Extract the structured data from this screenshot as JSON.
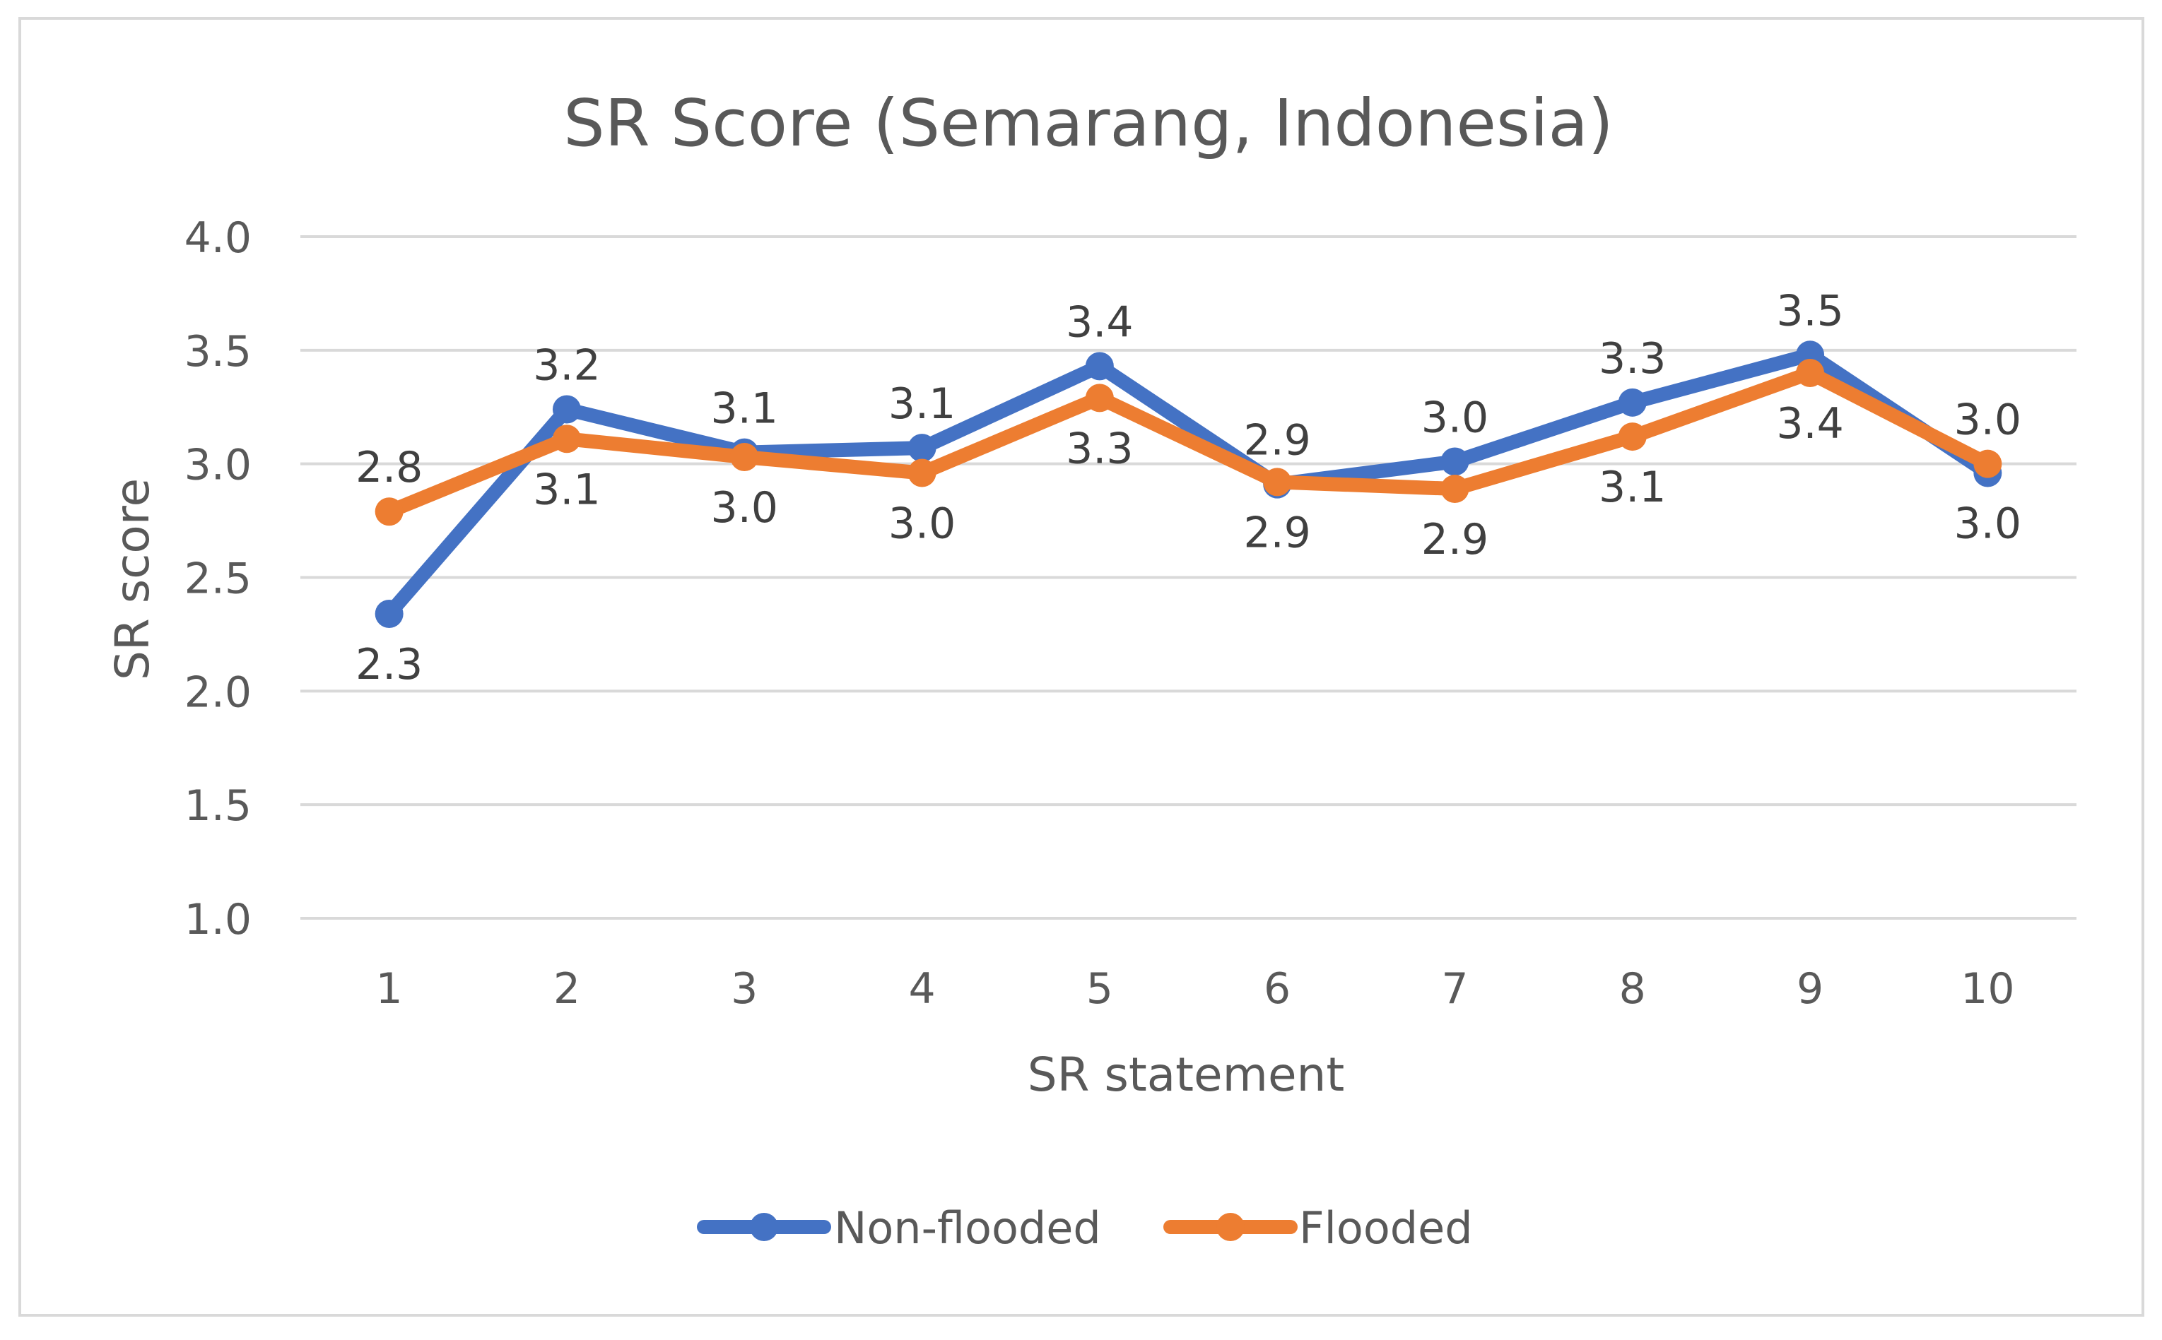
{
  "chart_data": {
    "type": "line",
    "title": "SR Score (Semarang, Indonesia)",
    "xlabel": "SR statement",
    "ylabel": "SR score",
    "categories": [
      "1",
      "2",
      "3",
      "4",
      "5",
      "6",
      "7",
      "8",
      "9",
      "10"
    ],
    "ylim": [
      1.0,
      4.0
    ],
    "yticks": [
      "1.0",
      "1.5",
      "2.0",
      "2.5",
      "3.0",
      "3.5",
      "4.0"
    ],
    "grid": true,
    "legend_position": "bottom",
    "series": [
      {
        "name": "Non-flooded",
        "color": "#4472c4",
        "values": [
          2.34,
          3.24,
          3.05,
          3.07,
          3.43,
          2.91,
          3.01,
          3.27,
          3.48,
          2.96
        ],
        "labels": [
          "2.3",
          "3.2",
          "3.1",
          "3.1",
          "3.4",
          "2.9",
          "3.0",
          "3.3",
          "3.5",
          "3.0"
        ],
        "label_positions": [
          "below",
          "above",
          "above",
          "above",
          "above",
          "above",
          "above",
          "above",
          "above",
          "below"
        ]
      },
      {
        "name": "Flooded",
        "color": "#ed7d31",
        "values": [
          2.79,
          3.11,
          3.03,
          2.96,
          3.29,
          2.92,
          2.89,
          3.12,
          3.4,
          3.0
        ],
        "labels": [
          "2.8",
          "3.1",
          "3.0",
          "3.0",
          "3.3",
          "2.9",
          "2.9",
          "3.1",
          "3.4",
          "3.0"
        ],
        "label_positions": [
          "above",
          "below",
          "below",
          "below",
          "below",
          "below",
          "below",
          "below",
          "below",
          "above"
        ]
      }
    ]
  }
}
